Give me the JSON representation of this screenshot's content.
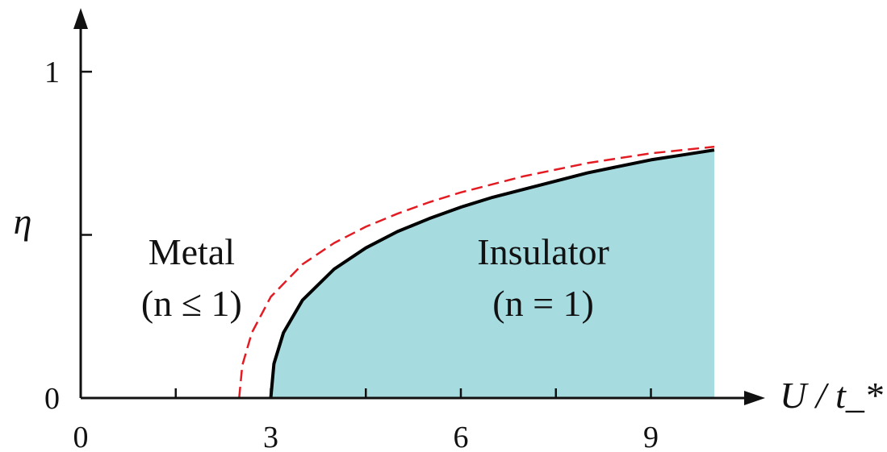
{
  "chart_data": {
    "type": "area",
    "xlabel": "U / t_*",
    "ylabel": "η",
    "xlim": [
      0,
      10.6
    ],
    "ylim": [
      0,
      1.07
    ],
    "x_ticks": [
      0,
      1.5,
      3,
      4.5,
      6,
      7.5,
      9
    ],
    "x_tick_labels": [
      {
        "value": 0,
        "label": "0"
      },
      {
        "value": 3,
        "label": "3"
      },
      {
        "value": 6,
        "label": "6"
      },
      {
        "value": 9,
        "label": "9"
      }
    ],
    "y_ticks": [
      0,
      0.5,
      1
    ],
    "y_tick_labels": [
      {
        "value": 0,
        "label": "0"
      },
      {
        "value": 1,
        "label": "1"
      }
    ],
    "series": [
      {
        "style": "solid",
        "color": "#000000",
        "filled_below": true,
        "fill_color": "#a6dbe0",
        "x": [
          3.0,
          3.05,
          3.2,
          3.5,
          4.0,
          4.5,
          5.0,
          5.5,
          6.0,
          6.5,
          7.0,
          7.5,
          8.0,
          8.5,
          9.0,
          9.5,
          10.0
        ],
        "y": [
          0.0,
          0.105,
          0.2,
          0.3,
          0.395,
          0.46,
          0.51,
          0.55,
          0.585,
          0.615,
          0.64,
          0.665,
          0.69,
          0.71,
          0.73,
          0.745,
          0.76
        ]
      },
      {
        "style": "dashed",
        "color": "#e31b23",
        "filled_below": false,
        "x": [
          2.5,
          2.55,
          2.7,
          3.0,
          3.5,
          4.0,
          4.5,
          5.0,
          5.5,
          6.0,
          6.5,
          7.0,
          7.5,
          8.0,
          8.5,
          9.0,
          9.5,
          10.0
        ],
        "y": [
          0.0,
          0.1,
          0.2,
          0.31,
          0.41,
          0.475,
          0.525,
          0.565,
          0.6,
          0.63,
          0.655,
          0.68,
          0.7,
          0.72,
          0.735,
          0.75,
          0.76,
          0.77
        ]
      }
    ],
    "annotations": [
      {
        "id": "metal",
        "lines": [
          "Metal",
          "(n ≤ 1)"
        ],
        "x": 1.75,
        "y": 0.41
      },
      {
        "id": "insulator",
        "lines": [
          "Insulator",
          "(n = 1)"
        ],
        "x": 7.3,
        "y": 0.41
      }
    ]
  }
}
